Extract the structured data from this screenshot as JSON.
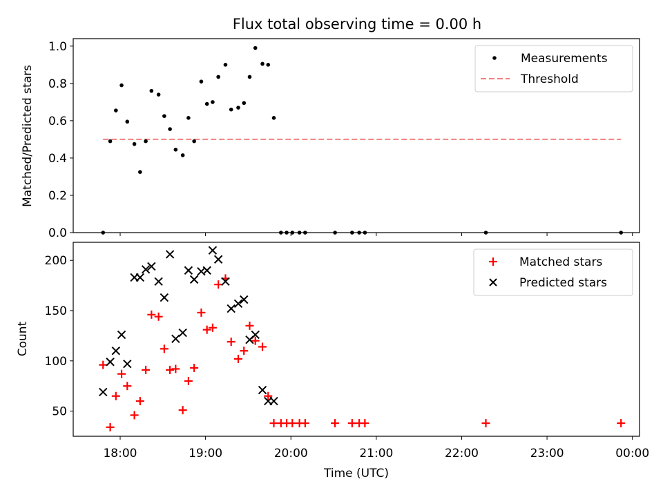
{
  "chart_data": [
    {
      "type": "scatter",
      "title": "Flux total observing time = 0.00 h",
      "ylabel": "Matched/Predicted stars",
      "xlabel": "",
      "xlim": [
        "17:27",
        "00:05"
      ],
      "ylim": [
        0,
        1.04
      ],
      "yticks": [
        "0.0",
        "0.2",
        "0.4",
        "0.6",
        "0.8",
        "1.0"
      ],
      "legend_position": "top-right",
      "grid": false,
      "series": [
        {
          "name": "Measurements",
          "marker": "dot",
          "color": "#000000",
          "x": [
            "17:48",
            "17:53",
            "17:57",
            "18:01",
            "18:05",
            "18:10",
            "18:14",
            "18:18",
            "18:22",
            "18:27",
            "18:31",
            "18:35",
            "18:39",
            "18:44",
            "18:48",
            "18:52",
            "18:57",
            "19:01",
            "19:05",
            "19:09",
            "19:14",
            "19:18",
            "19:23",
            "19:27",
            "19:31",
            "19:35",
            "19:40",
            "19:44",
            "19:48",
            "19:53",
            "19:57",
            "20:01",
            "20:06",
            "20:10",
            "20:31",
            "20:43",
            "20:48",
            "20:52",
            "22:17",
            "23:52"
          ],
          "values": [
            0.0,
            0.49,
            0.655,
            0.79,
            0.595,
            0.475,
            0.325,
            0.49,
            0.76,
            0.74,
            0.625,
            0.555,
            0.445,
            0.415,
            0.615,
            0.49,
            0.81,
            0.69,
            0.7,
            0.835,
            0.9,
            0.66,
            0.67,
            0.695,
            0.835,
            0.99,
            0.905,
            0.9,
            0.615,
            0.0,
            0.0,
            0.0,
            0.0,
            0.0,
            0.0,
            0.0,
            0.0,
            0.0,
            0.0,
            0.0
          ]
        },
        {
          "name": "Threshold",
          "style": "dashed",
          "color": "#f08080",
          "x": [
            "17:48",
            "23:52"
          ],
          "values": [
            0.5,
            0.5
          ]
        }
      ]
    },
    {
      "type": "scatter",
      "title": "",
      "ylabel": "Count",
      "xlabel": "Time (UTC)",
      "xlim": [
        "17:27",
        "00:05"
      ],
      "ylim": [
        25,
        218
      ],
      "yticks": [
        "50",
        "100",
        "150",
        "200"
      ],
      "xticks": [
        "18:00",
        "19:00",
        "20:00",
        "21:00",
        "22:00",
        "23:00",
        "00:00"
      ],
      "legend_position": "top-right",
      "grid": false,
      "series": [
        {
          "name": "Matched stars",
          "marker": "plus",
          "color": "#ff0000",
          "x": [
            "17:48",
            "17:53",
            "17:57",
            "18:01",
            "18:05",
            "18:10",
            "18:14",
            "18:18",
            "18:22",
            "18:27",
            "18:31",
            "18:35",
            "18:39",
            "18:44",
            "18:48",
            "18:52",
            "18:57",
            "19:01",
            "19:05",
            "19:09",
            "19:14",
            "19:18",
            "19:23",
            "19:27",
            "19:31",
            "19:35",
            "19:40",
            "19:44",
            "19:48",
            "19:53",
            "19:57",
            "20:01",
            "20:06",
            "20:10",
            "20:31",
            "20:43",
            "20:48",
            "20:52",
            "22:17",
            "23:52"
          ],
          "values": [
            96,
            34,
            65,
            87,
            75,
            46,
            60,
            91,
            146,
            144,
            112,
            91,
            92,
            51,
            80,
            93,
            148,
            131,
            133,
            176,
            182,
            119,
            102,
            110,
            135,
            120,
            114,
            65,
            38,
            38,
            38,
            38,
            38,
            38,
            38,
            38,
            38,
            38,
            38,
            38
          ]
        },
        {
          "name": "Predicted stars",
          "marker": "x",
          "color": "#000000",
          "x": [
            "17:48",
            "17:53",
            "17:57",
            "18:01",
            "18:05",
            "18:10",
            "18:14",
            "18:18",
            "18:22",
            "18:27",
            "18:31",
            "18:35",
            "18:39",
            "18:44",
            "18:48",
            "18:52",
            "18:57",
            "19:01",
            "19:05",
            "19:09",
            "19:14",
            "19:18",
            "19:23",
            "19:27",
            "19:31",
            "19:35",
            "19:40",
            "19:44",
            "19:48"
          ],
          "values": [
            69,
            99,
            110,
            126,
            97,
            183,
            183,
            191,
            194,
            179,
            163,
            206,
            122,
            128,
            190,
            181,
            189,
            190,
            210,
            201,
            179,
            152,
            157,
            161,
            121,
            126,
            71,
            60,
            60
          ]
        }
      ]
    }
  ]
}
